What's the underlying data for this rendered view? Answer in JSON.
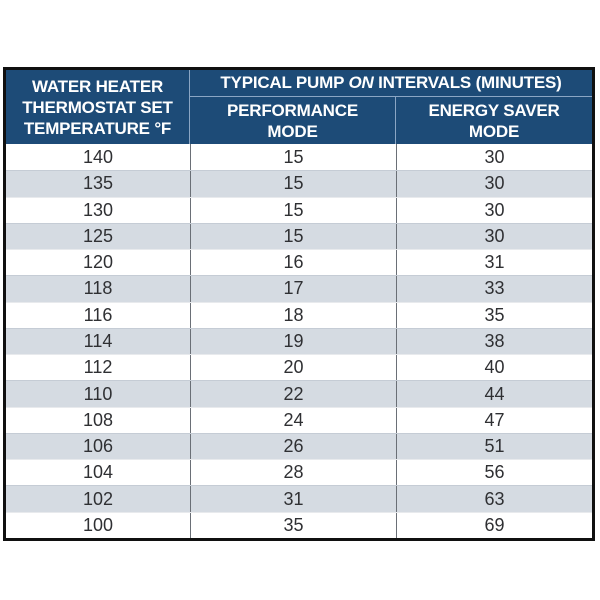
{
  "page": {
    "background": "#ffffff"
  },
  "table": {
    "header": {
      "thermostat_line1": "WATER HEATER",
      "thermostat_line2": "THERMOSTAT SET",
      "thermostat_line3": "TEMPERATURE °F",
      "intervals_pre": "TYPICAL PUMP ",
      "intervals_italic": "ON",
      "intervals_post": " INTERVALS (MINUTES)",
      "performance_line1": "PERFORMANCE",
      "performance_line2": "MODE",
      "energy_saver_line1": "ENERGY SAVER",
      "energy_saver_line2": "MODE"
    },
    "colors": {
      "header_bg": "#1d4b77",
      "header_text": "#ffffff",
      "stripe": "#d5dbe2",
      "row_text": "#2f3033",
      "outer_border": "#101010",
      "divider": "#6a6f76",
      "header_divider": "#8ba6c4"
    }
  },
  "chart_data": {
    "type": "table",
    "title": "TYPICAL PUMP ON INTERVALS (MINUTES)",
    "columns": [
      "WATER HEATER THERMOSTAT SET TEMPERATURE °F",
      "PERFORMANCE MODE",
      "ENERGY SAVER MODE"
    ],
    "rows": [
      [
        140,
        15,
        30
      ],
      [
        135,
        15,
        30
      ],
      [
        130,
        15,
        30
      ],
      [
        125,
        15,
        30
      ],
      [
        120,
        16,
        31
      ],
      [
        118,
        17,
        33
      ],
      [
        116,
        18,
        35
      ],
      [
        114,
        19,
        38
      ],
      [
        112,
        20,
        40
      ],
      [
        110,
        22,
        44
      ],
      [
        108,
        24,
        47
      ],
      [
        106,
        26,
        51
      ],
      [
        104,
        28,
        56
      ],
      [
        102,
        31,
        63
      ],
      [
        100,
        35,
        69
      ]
    ]
  }
}
